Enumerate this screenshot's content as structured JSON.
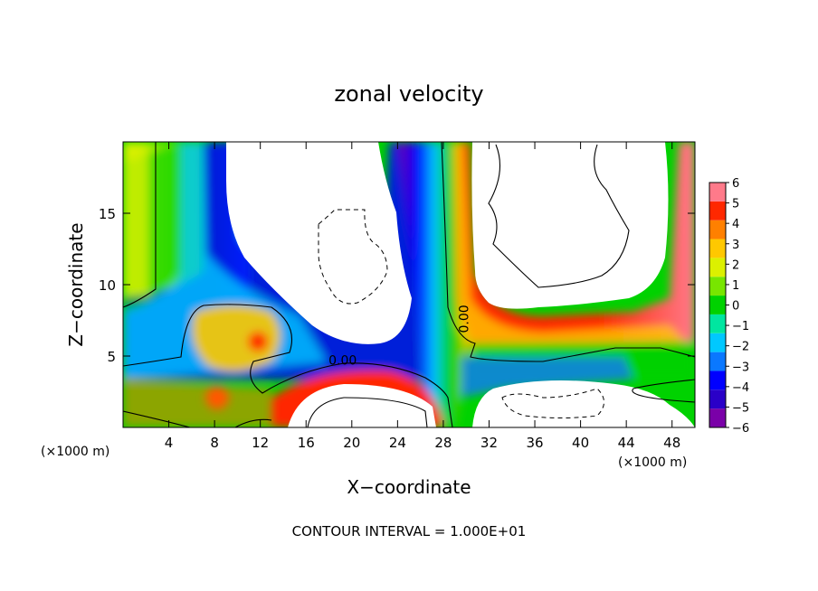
{
  "chart_data": {
    "type": "heatmap",
    "title": "zonal velocity",
    "xlabel": "X−coordinate",
    "ylabel": "Z−coordinate",
    "x_unit_label": "(×1000 m)",
    "x_unit_label_left": "(×1000 m)",
    "footer": "CONTOUR INTERVAL = 1.000E+01",
    "xlim": [
      0,
      50
    ],
    "ylim": [
      0,
      20
    ],
    "x_ticks": [
      4,
      8,
      12,
      16,
      20,
      24,
      28,
      32,
      36,
      40,
      44,
      48
    ],
    "y_ticks": [
      5,
      10,
      15
    ],
    "x_tick_labels": [
      "4",
      "8",
      "12",
      "16",
      "20",
      "24",
      "28",
      "32",
      "36",
      "40",
      "44",
      "48"
    ],
    "y_tick_labels": [
      "5",
      "10",
      "15"
    ],
    "colorbar": {
      "levels": [
        -6,
        -5,
        -4,
        -3,
        -2,
        -1,
        0,
        1,
        2,
        3,
        4,
        5,
        6
      ],
      "labels": [
        "−6",
        "−5",
        "−4",
        "−3",
        "−2",
        "−1",
        "0",
        "1",
        "2",
        "3",
        "4",
        "5",
        "6"
      ],
      "colors": [
        "#7a00a8",
        "#2a00c8",
        "#0000ff",
        "#0a78ff",
        "#00c8ff",
        "#00e6a0",
        "#00d200",
        "#78e600",
        "#dcf000",
        "#ffc800",
        "#ff8000",
        "#ff2800",
        "#ff7a8a"
      ]
    },
    "contour_labels": [
      {
        "text": "0.00",
        "x": 19.2,
        "y": 4.4,
        "rotate": 0
      },
      {
        "text": "0.00",
        "x": 30.2,
        "y": 7.6,
        "rotate": -90
      }
    ],
    "grid": false,
    "legend": "right colorbar"
  }
}
